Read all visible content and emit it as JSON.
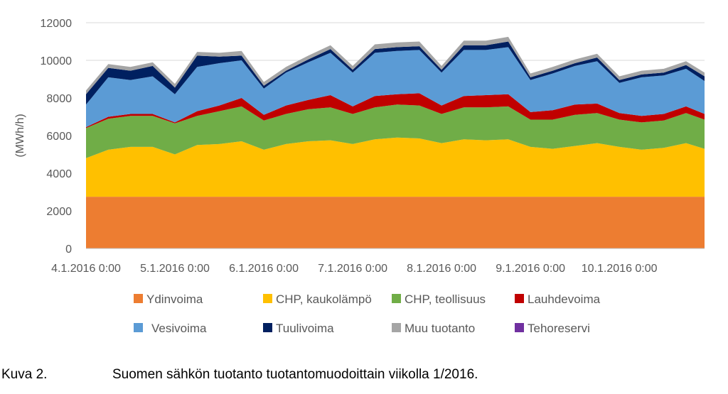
{
  "chart_data": {
    "type": "area",
    "stacked": true,
    "title": "",
    "xlabel": "",
    "ylabel": "(MWh/h)",
    "ylim": [
      0,
      12000
    ],
    "yticks": [
      0,
      2000,
      4000,
      6000,
      8000,
      10000,
      12000
    ],
    "x_tick_labels": [
      "4.1.2016 0:00",
      "5.1.2016 0:00",
      "6.1.2016 0:00",
      "7.1.2016 0:00",
      "8.1.2016 0:00",
      "9.1.2016 0:00",
      "10.1.2016 0:00"
    ],
    "x_tick_hours": [
      0,
      24,
      48,
      72,
      96,
      120,
      144
    ],
    "grid": "horizontal",
    "legend_position": "bottom",
    "legend_columns": 4,
    "x_hours": [
      0,
      6,
      12,
      18,
      24,
      30,
      36,
      42,
      48,
      54,
      60,
      66,
      72,
      78,
      84,
      90,
      96,
      102,
      108,
      114,
      120,
      126,
      132,
      138,
      144,
      150,
      156,
      162,
      167
    ],
    "series": [
      {
        "name": "Ydinvoima",
        "color": "#ED7D31",
        "values": [
          2750,
          2750,
          2750,
          2750,
          2750,
          2750,
          2750,
          2750,
          2750,
          2750,
          2750,
          2750,
          2750,
          2750,
          2750,
          2750,
          2750,
          2750,
          2750,
          2750,
          2750,
          2750,
          2750,
          2750,
          2750,
          2750,
          2750,
          2750,
          2750
        ]
      },
      {
        "name": "CHP, kaukolämpö",
        "color": "#FFC000",
        "values": [
          2050,
          2500,
          2650,
          2650,
          2250,
          2750,
          2800,
          2950,
          2500,
          2800,
          2950,
          3000,
          2800,
          3050,
          3150,
          3100,
          2850,
          3050,
          3000,
          3050,
          2650,
          2550,
          2700,
          2850,
          2650,
          2500,
          2600,
          2850,
          2550
        ]
      },
      {
        "name": "CHP, teollisuus",
        "color": "#70AD47",
        "values": [
          1600,
          1650,
          1650,
          1650,
          1650,
          1550,
          1750,
          1850,
          1550,
          1600,
          1700,
          1750,
          1600,
          1700,
          1750,
          1750,
          1550,
          1700,
          1750,
          1750,
          1450,
          1550,
          1650,
          1600,
          1450,
          1450,
          1450,
          1600,
          1550
        ]
      },
      {
        "name": "Lauhdevoima",
        "color": "#C00000",
        "values": [
          50,
          100,
          100,
          100,
          50,
          250,
          300,
          450,
          300,
          450,
          500,
          650,
          400,
          600,
          550,
          650,
          450,
          600,
          650,
          650,
          400,
          500,
          550,
          500,
          350,
          350,
          350,
          350,
          300
        ]
      },
      {
        "name": "Vesivoima",
        "color": "#5B9BD5",
        "values": [
          1200,
          2100,
          1800,
          2000,
          1500,
          2350,
          2250,
          2000,
          1400,
          1750,
          2000,
          2250,
          1800,
          2300,
          2300,
          2300,
          1750,
          2450,
          2400,
          2500,
          1700,
          1950,
          2050,
          2250,
          1600,
          2050,
          2050,
          2000,
          1750
        ]
      },
      {
        "name": "Tuulivoima",
        "color": "#002060",
        "values": [
          550,
          500,
          500,
          550,
          350,
          600,
          350,
          250,
          150,
          100,
          150,
          200,
          150,
          200,
          200,
          200,
          150,
          250,
          250,
          300,
          150,
          150,
          150,
          200,
          150,
          150,
          150,
          200,
          250
        ]
      },
      {
        "name": "Muu tuotanto",
        "color": "#A5A5A5",
        "values": [
          200,
          200,
          200,
          200,
          200,
          200,
          200,
          250,
          200,
          200,
          200,
          200,
          200,
          250,
          250,
          250,
          200,
          250,
          250,
          250,
          200,
          200,
          200,
          200,
          200,
          200,
          200,
          200,
          200
        ]
      },
      {
        "name": "Tehoreservi",
        "color": "#7030A0",
        "values": [
          0,
          0,
          0,
          0,
          0,
          0,
          0,
          0,
          0,
          0,
          0,
          0,
          0,
          0,
          0,
          0,
          0,
          0,
          0,
          0,
          0,
          0,
          0,
          0,
          0,
          0,
          0,
          0,
          0
        ]
      }
    ]
  },
  "caption": {
    "label": "Kuva 2.",
    "text": "Suomen sähkön tuotanto tuotantomuodoittain viikolla 1/2016."
  }
}
